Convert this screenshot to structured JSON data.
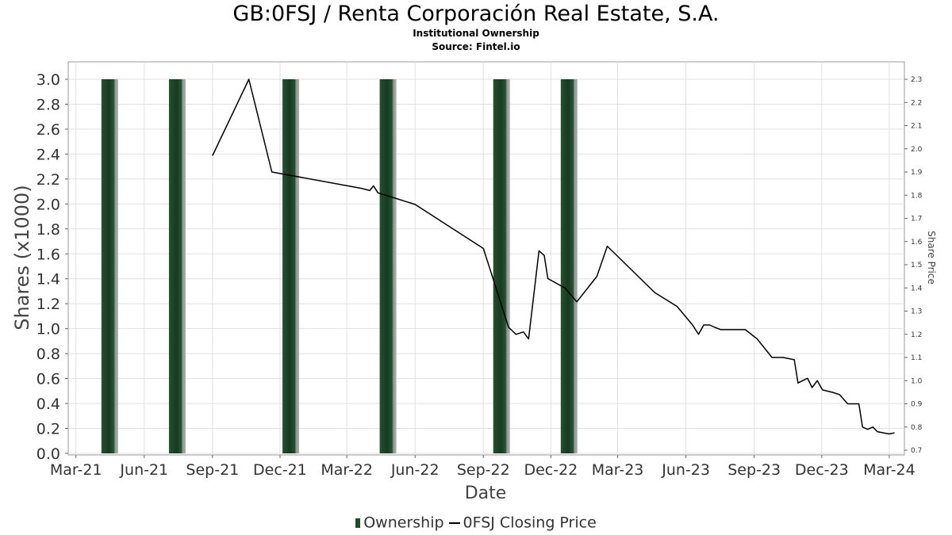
{
  "header": {
    "title": "GB:0FSJ / Renta Corporación Real Estate, S.A.",
    "subtitle": "Institutional Ownership",
    "source": "Source: Fintel.io"
  },
  "legend": {
    "ownership_label": "Ownership",
    "price_label": "0FSJ Closing Price"
  },
  "colors": {
    "bar": "#1f4d2b",
    "line": "#000000",
    "grid": "#dddddd"
  },
  "chart_data": {
    "type": "bar+line",
    "xlabel": "Date",
    "ylabel": "Shares (x1000)",
    "y2label": "Share Price",
    "x_ticks": [
      "Mar-21",
      "Jun-21",
      "Sep-21",
      "Dec-21",
      "Mar-22",
      "Jun-22",
      "Sep-22",
      "Dec-22",
      "Mar-23",
      "Jun-23",
      "Sep-23",
      "Dec-23",
      "Mar-24"
    ],
    "y_ticks": [
      "0.0",
      "0.2",
      "0.4",
      "0.6",
      "0.8",
      "1.0",
      "1.2",
      "1.4",
      "1.6",
      "1.8",
      "2.0",
      "2.2",
      "2.4",
      "2.6",
      "2.8",
      "3.0"
    ],
    "y2_ticks": [
      "0.7",
      "0.8",
      "0.9",
      "1.0",
      "1.1",
      "1.2",
      "1.3",
      "1.4",
      "1.5",
      "1.6",
      "1.7",
      "1.8",
      "1.9",
      "2.0",
      "2.1",
      "2.2",
      "2.3"
    ],
    "ylim": [
      0,
      3.0
    ],
    "y2lim": [
      0.7,
      2.3
    ],
    "xlim": [
      "2021-02-25",
      "2024-03-15"
    ],
    "grid": true,
    "legend_position": "bottom",
    "series": [
      {
        "name": "Ownership",
        "type": "bar",
        "points": [
          {
            "date": "2021-04-15",
            "value": 3.0
          },
          {
            "date": "2021-07-15",
            "value": 3.0
          },
          {
            "date": "2021-12-15",
            "value": 3.0
          },
          {
            "date": "2022-04-25",
            "value": 3.0
          },
          {
            "date": "2022-09-25",
            "value": 3.0
          },
          {
            "date": "2022-12-25",
            "value": 3.0
          }
        ]
      },
      {
        "name": "0FSJ Closing Price",
        "type": "line",
        "axis": "right",
        "points": [
          {
            "date": "2021-09-01",
            "value": 1.97
          },
          {
            "date": "2021-10-20",
            "value": 2.3
          },
          {
            "date": "2021-11-20",
            "value": 1.9
          },
          {
            "date": "2022-03-20",
            "value": 1.83
          },
          {
            "date": "2022-04-01",
            "value": 1.82
          },
          {
            "date": "2022-04-06",
            "value": 1.84
          },
          {
            "date": "2022-04-12",
            "value": 1.81
          },
          {
            "date": "2022-04-22",
            "value": 1.8
          },
          {
            "date": "2022-06-01",
            "value": 1.76
          },
          {
            "date": "2022-09-01",
            "value": 1.57
          },
          {
            "date": "2022-10-05",
            "value": 1.23
          },
          {
            "date": "2022-10-15",
            "value": 1.2
          },
          {
            "date": "2022-10-25",
            "value": 1.21
          },
          {
            "date": "2022-11-01",
            "value": 1.18
          },
          {
            "date": "2022-11-15",
            "value": 1.56
          },
          {
            "date": "2022-11-22",
            "value": 1.54
          },
          {
            "date": "2022-11-27",
            "value": 1.44
          },
          {
            "date": "2022-12-20",
            "value": 1.4
          },
          {
            "date": "2022-12-28",
            "value": 1.37
          },
          {
            "date": "2023-01-05",
            "value": 1.34
          },
          {
            "date": "2023-02-01",
            "value": 1.45
          },
          {
            "date": "2023-02-15",
            "value": 1.58
          },
          {
            "date": "2023-04-20",
            "value": 1.38
          },
          {
            "date": "2023-05-20",
            "value": 1.32
          },
          {
            "date": "2023-06-10",
            "value": 1.24
          },
          {
            "date": "2023-06-18",
            "value": 1.2
          },
          {
            "date": "2023-06-25",
            "value": 1.24
          },
          {
            "date": "2023-07-03",
            "value": 1.24
          },
          {
            "date": "2023-07-10",
            "value": 1.23
          },
          {
            "date": "2023-07-18",
            "value": 1.22
          },
          {
            "date": "2023-08-01",
            "value": 1.22
          },
          {
            "date": "2023-08-15",
            "value": 1.22
          },
          {
            "date": "2023-08-20",
            "value": 1.22
          },
          {
            "date": "2023-09-05",
            "value": 1.18
          },
          {
            "date": "2023-09-25",
            "value": 1.1
          },
          {
            "date": "2023-10-10",
            "value": 1.1
          },
          {
            "date": "2023-10-25",
            "value": 1.09
          },
          {
            "date": "2023-10-30",
            "value": 0.99
          },
          {
            "date": "2023-11-05",
            "value": 1.0
          },
          {
            "date": "2023-11-12",
            "value": 1.01
          },
          {
            "date": "2023-11-18",
            "value": 0.97
          },
          {
            "date": "2023-11-25",
            "value": 1.0
          },
          {
            "date": "2023-12-02",
            "value": 0.96
          },
          {
            "date": "2023-12-15",
            "value": 0.95
          },
          {
            "date": "2023-12-25",
            "value": 0.94
          },
          {
            "date": "2024-01-05",
            "value": 0.9
          },
          {
            "date": "2024-01-15",
            "value": 0.9
          },
          {
            "date": "2024-01-20",
            "value": 0.9
          },
          {
            "date": "2024-01-25",
            "value": 0.8
          },
          {
            "date": "2024-02-01",
            "value": 0.79
          },
          {
            "date": "2024-02-08",
            "value": 0.8
          },
          {
            "date": "2024-02-14",
            "value": 0.78
          },
          {
            "date": "2024-02-22",
            "value": 0.775
          },
          {
            "date": "2024-03-01",
            "value": 0.77
          },
          {
            "date": "2024-03-08",
            "value": 0.775
          }
        ]
      }
    ]
  }
}
